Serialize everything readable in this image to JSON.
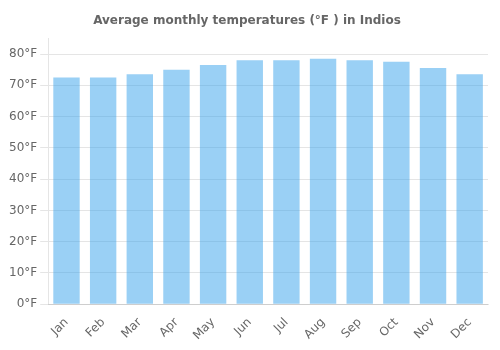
{
  "chart_data": {
    "type": "bar",
    "title": "Average monthly temperatures (°F ) in Indios",
    "categories": [
      "Jan",
      "Feb",
      "Mar",
      "Apr",
      "May",
      "Jun",
      "Jul",
      "Aug",
      "Sep",
      "Oct",
      "Nov",
      "Dec"
    ],
    "values": [
      72.5,
      72.5,
      73.5,
      75.0,
      76.5,
      78.0,
      78.0,
      78.5,
      78.0,
      77.5,
      75.5,
      73.5
    ],
    "ylim": [
      0,
      85
    ],
    "yticks": [
      {
        "value": 0,
        "label": "0°F"
      },
      {
        "value": 10,
        "label": "10°F"
      },
      {
        "value": 20,
        "label": "20°F"
      },
      {
        "value": 30,
        "label": "30°F"
      },
      {
        "value": 40,
        "label": "40°F"
      },
      {
        "value": 50,
        "label": "50°F"
      },
      {
        "value": 60,
        "label": "60°F"
      },
      {
        "value": 70,
        "label": "70°F"
      },
      {
        "value": 80,
        "label": "80°F"
      }
    ],
    "grid": true
  }
}
